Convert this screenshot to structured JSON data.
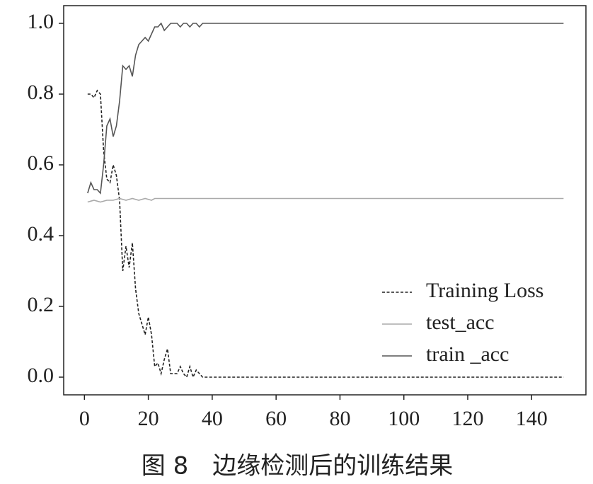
{
  "chart_data": {
    "type": "line",
    "caption": "图 8　边缘检测后的训练结果",
    "xlim": [
      -6.5,
      157
    ],
    "ylim": [
      -0.05,
      1.05
    ],
    "xticks": [
      0,
      20,
      40,
      60,
      80,
      100,
      120,
      140
    ],
    "yticks": [
      {
        "value": 0,
        "label": "0.0"
      },
      {
        "value": 0.2,
        "label": "0.2"
      },
      {
        "value": 0.4,
        "label": "0.4"
      },
      {
        "value": 0.6,
        "label": "0.6"
      },
      {
        "value": 0.8,
        "label": "0.8"
      },
      {
        "value": 1,
        "label": "1.0"
      }
    ],
    "legend": "lower right",
    "series": [
      {
        "name": "Training Loss",
        "color": "#222222",
        "linestyle": "dashed",
        "x": [
          1,
          2,
          3,
          4,
          5,
          6,
          7,
          8,
          9,
          10,
          11,
          12,
          13,
          14,
          15,
          16,
          17,
          18,
          19,
          20,
          21,
          22,
          23,
          24,
          25,
          26,
          27,
          28,
          29,
          30,
          31,
          32,
          33,
          34,
          35,
          36,
          37,
          38,
          40,
          150
        ],
        "values": [
          0.8,
          0.8,
          0.79,
          0.81,
          0.8,
          0.64,
          0.56,
          0.55,
          0.6,
          0.57,
          0.5,
          0.3,
          0.37,
          0.31,
          0.38,
          0.25,
          0.18,
          0.15,
          0.12,
          0.17,
          0.12,
          0.03,
          0.04,
          0.01,
          0.05,
          0.08,
          0.01,
          0.01,
          0.01,
          0.03,
          0.01,
          0.0,
          0.03,
          0.0,
          0.02,
          0.01,
          0.0,
          0.0,
          0.0,
          0.0
        ]
      },
      {
        "name": "test_acc",
        "color": "#aaaaaa",
        "linestyle": "solid",
        "x": [
          1,
          3,
          5,
          7,
          9,
          11,
          13,
          15,
          17,
          19,
          21,
          22,
          150
        ],
        "values": [
          0.495,
          0.5,
          0.495,
          0.5,
          0.5,
          0.505,
          0.5,
          0.505,
          0.5,
          0.505,
          0.5,
          0.505,
          0.505
        ]
      },
      {
        "name": "train _acc",
        "color": "#555555",
        "linestyle": "solid",
        "x": [
          1,
          2,
          3,
          4,
          5,
          6,
          7,
          8,
          9,
          10,
          11,
          12,
          13,
          14,
          15,
          16,
          17,
          18,
          19,
          20,
          21,
          22,
          23,
          24,
          25,
          26,
          27,
          28,
          29,
          30,
          31,
          32,
          33,
          34,
          35,
          36,
          37,
          150
        ],
        "values": [
          0.52,
          0.55,
          0.53,
          0.53,
          0.52,
          0.6,
          0.71,
          0.73,
          0.68,
          0.71,
          0.78,
          0.88,
          0.87,
          0.88,
          0.85,
          0.91,
          0.94,
          0.95,
          0.96,
          0.95,
          0.97,
          0.99,
          0.99,
          1.0,
          0.98,
          0.99,
          1.0,
          1.0,
          1.0,
          0.99,
          1.0,
          1.0,
          0.99,
          1.0,
          1.0,
          0.99,
          1.0,
          1.0
        ]
      }
    ]
  }
}
